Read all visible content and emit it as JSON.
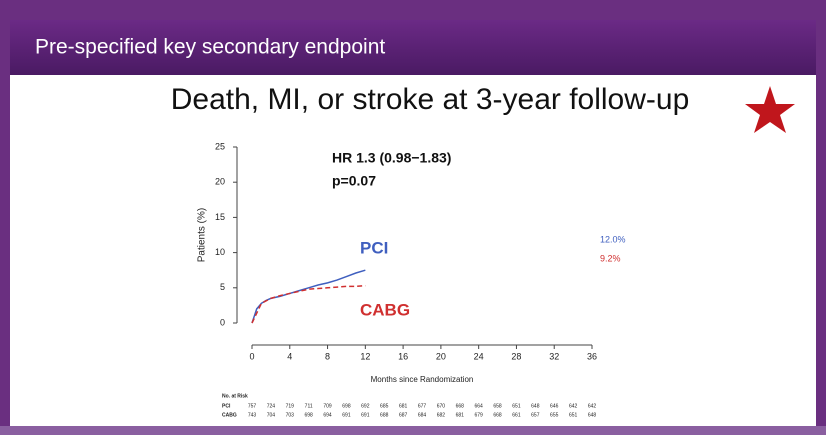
{
  "header": {
    "title": "Pre-specified key secondary endpoint"
  },
  "chart_data": {
    "type": "line",
    "title": "Death, MI, or stroke at 3-year follow-up",
    "y_label": "Patients (%)",
    "x_label": "Months since Randomization",
    "xlim": [
      0,
      36
    ],
    "xticks": [
      0,
      4,
      8,
      12,
      16,
      20,
      24,
      28,
      32,
      36
    ],
    "ylim": [
      0,
      25
    ],
    "yticks": [
      0,
      5,
      10,
      15,
      20,
      25
    ],
    "annotations": [
      "HR 1.3 (0.98−1.83)",
      "p=0.07"
    ],
    "series": [
      {
        "name": "PCI",
        "color": "#3f5fbf",
        "dashed": false,
        "end_label": "12.0%",
        "x": [
          0,
          0.5,
          1,
          1.5,
          2,
          3,
          4,
          5,
          6,
          7,
          8,
          9,
          10,
          11,
          12
        ],
        "values": [
          0,
          2,
          2.8,
          3.2,
          3.5,
          3.8,
          4.2,
          4.6,
          5,
          5.4,
          5.7,
          6.1,
          6.6,
          7.1,
          7.5
        ]
      },
      {
        "name": "CABG",
        "color": "#d03030",
        "dashed": true,
        "end_label": "9.2%",
        "x": [
          0,
          1,
          2,
          3,
          4,
          5,
          6,
          7,
          8,
          9,
          10,
          11,
          12
        ],
        "values": [
          0,
          2.8,
          3.5,
          3.9,
          4.2,
          4.5,
          4.8,
          4.9,
          5,
          5.1,
          5.2,
          5.2,
          5.3
        ]
      }
    ]
  },
  "risk_table": {
    "title": "No. at Risk",
    "rows": [
      {
        "name": "PCI",
        "values": [
          "757",
          "724",
          "719",
          "711",
          "709",
          "698",
          "692",
          "685",
          "681",
          "677",
          "670",
          "668",
          "664",
          "658",
          "651",
          "648",
          "646",
          "642",
          "642"
        ]
      },
      {
        "name": "CABG",
        "values": [
          "743",
          "704",
          "703",
          "698",
          "694",
          "691",
          "691",
          "688",
          "687",
          "684",
          "682",
          "681",
          "679",
          "668",
          "661",
          "657",
          "655",
          "651",
          "648"
        ]
      }
    ]
  }
}
